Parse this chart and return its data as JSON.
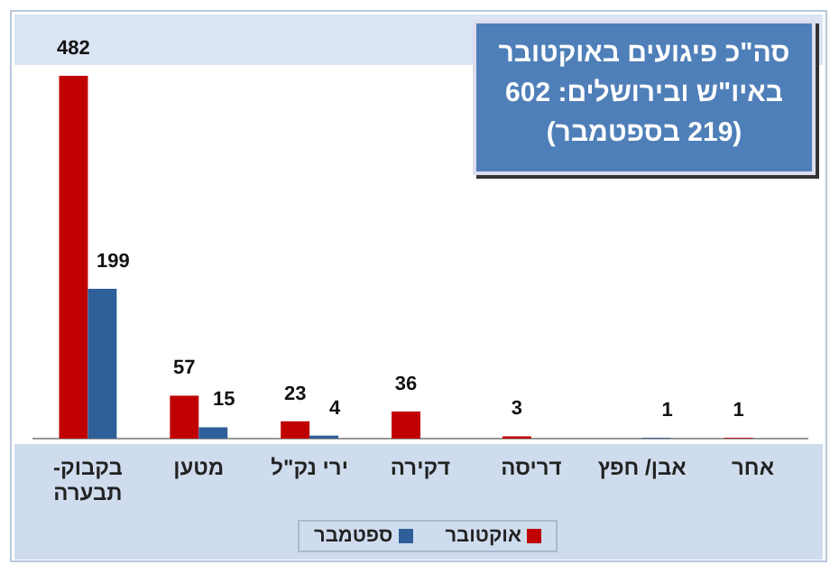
{
  "chart_data": {
    "type": "bar",
    "title": "סה\"כ פיגועים באוקטובר באיו\"ש ובירושלים: 602 (219 בספטמבר)",
    "categories": [
      "בקבוק-תבערה",
      "מטען",
      "ירי נק\"ל",
      "דקירה",
      "דריסה",
      "אבן/ חפץ",
      "אחר"
    ],
    "series": [
      {
        "name": "אוקטובר",
        "color": "#c00000",
        "values": [
          482,
          57,
          23,
          36,
          3,
          null,
          1
        ]
      },
      {
        "name": "ספטמבר",
        "color": "#2e5f99",
        "values": [
          199,
          15,
          4,
          null,
          null,
          1,
          null
        ]
      }
    ],
    "data_labels": true,
    "legend": "bottom"
  }
}
